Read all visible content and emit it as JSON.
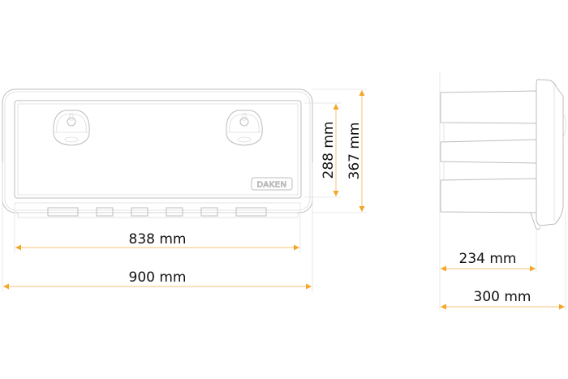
{
  "brand": "DAKEN",
  "accent_color": "#f5a623",
  "front_view": {
    "dimensions": {
      "inner_width": "838 mm",
      "outer_width": "900 mm",
      "inner_height": "288 mm",
      "outer_height": "367 mm"
    },
    "locks": 2,
    "hinges": 6
  },
  "side_view": {
    "dimensions": {
      "body_depth": "234 mm",
      "total_depth": "300 mm"
    }
  }
}
